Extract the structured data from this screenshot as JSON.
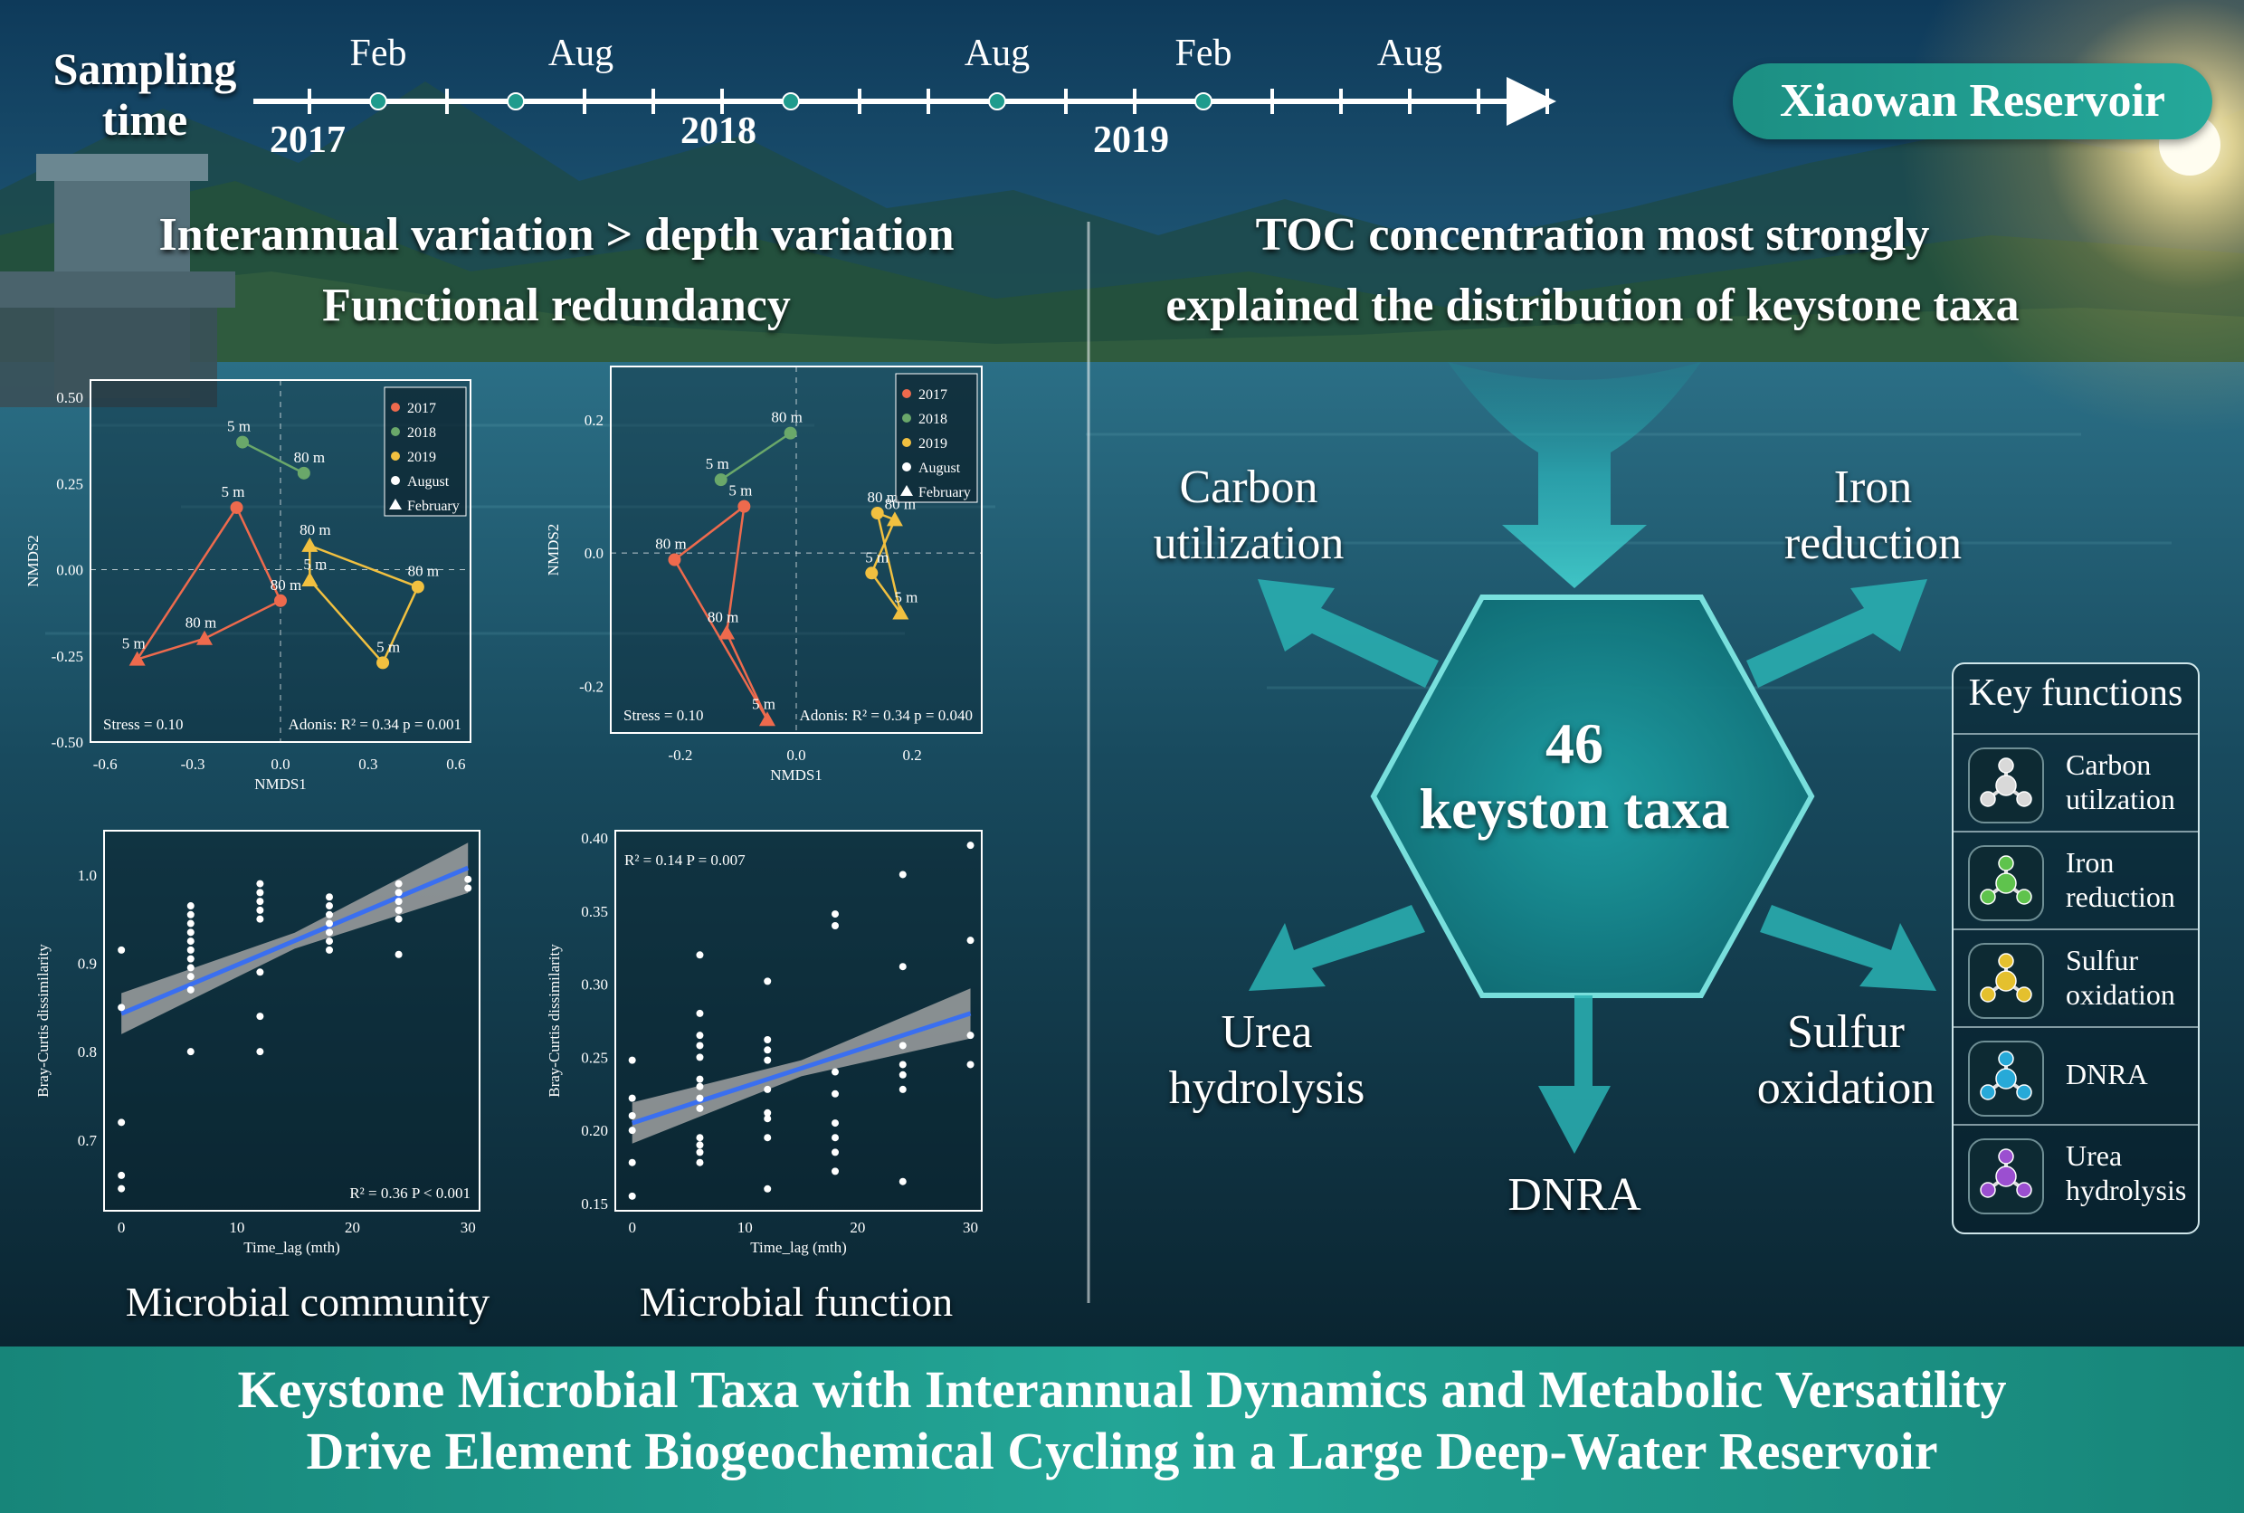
{
  "header": {
    "sampling_label_line1": "Sampling",
    "sampling_label_line2": "time",
    "months": [
      "Feb",
      "Aug",
      "Aug",
      "Feb",
      "Aug"
    ],
    "years": [
      "2017",
      "2018",
      "2019"
    ],
    "location": "Xiaowan Reservoir"
  },
  "left": {
    "heading1": "Interannual variation > depth variation",
    "heading2": "Functional redundancy",
    "caption_community": "Microbial community",
    "caption_function": "Microbial function"
  },
  "right": {
    "heading1": "TOC concentration most strongly",
    "heading2": "explained the distribution of keystone taxa",
    "count": "46",
    "count_label": "keyston taxa",
    "arrows": {
      "carbon": [
        "Carbon",
        "utilization"
      ],
      "iron": [
        "Iron",
        "reduction"
      ],
      "urea": [
        "Urea",
        "hydrolysis"
      ],
      "sulfur": [
        "Sulfur",
        "oxidation"
      ],
      "dnra": "DNRA"
    },
    "legend": {
      "title": "Key functions",
      "items": [
        {
          "line1": "Carbon",
          "line2": "utilzation",
          "color": "#d9d9d9"
        },
        {
          "line1": "Iron",
          "line2": "reduction",
          "color": "#5fc34d"
        },
        {
          "line1": "Sulfur",
          "line2": "oxidation",
          "color": "#e4c02e"
        },
        {
          "line1": "DNRA",
          "line2": "",
          "color": "#27a9d8"
        },
        {
          "line1": "Urea",
          "line2": "hydrolysis",
          "color": "#9b4fd0"
        }
      ]
    }
  },
  "colors": {
    "y2017": "#ee6a4d",
    "y2018": "#6aa86a",
    "y2019": "#f1c040",
    "teal": "#1f9b8d",
    "fit": "#3a6ff0"
  },
  "chart_data": [
    {
      "type": "scatter",
      "name": "NMDS community",
      "xlabel": "NMDS1",
      "ylabel": "NMDS2",
      "xlim": [
        -0.65,
        0.65
      ],
      "ylim": [
        -0.5,
        0.55
      ],
      "xticks": [
        "-0.6",
        "-0.3",
        "0.0",
        "0.3",
        "0.6"
      ],
      "yticks": [
        "-0.50",
        "-0.25",
        "0.00",
        "0.25",
        "0.50"
      ],
      "legend": [
        "2017",
        "2018",
        "2019",
        "August",
        "February"
      ],
      "stress": "Stress = 0.10",
      "adonis": "Adonis: R² = 0.34   p = 0.001",
      "points": [
        {
          "year": "2017",
          "season": "August",
          "depth": "5 m",
          "x": -0.15,
          "y": 0.18
        },
        {
          "year": "2017",
          "season": "August",
          "depth": "80 m",
          "x": 0.0,
          "y": -0.09
        },
        {
          "year": "2017",
          "season": "February",
          "depth": "80 m",
          "x": -0.26,
          "y": -0.2
        },
        {
          "year": "2017",
          "season": "February",
          "depth": "5 m",
          "x": -0.49,
          "y": -0.26
        },
        {
          "year": "2018",
          "season": "August",
          "depth": "5 m",
          "x": -0.13,
          "y": 0.37
        },
        {
          "year": "2018",
          "season": "August",
          "depth": "80 m",
          "x": 0.08,
          "y": 0.28
        },
        {
          "year": "2019",
          "season": "February",
          "depth": "80 m",
          "x": 0.1,
          "y": 0.07
        },
        {
          "year": "2019",
          "season": "August",
          "depth": "80 m",
          "x": 0.47,
          "y": -0.05
        },
        {
          "year": "2019",
          "season": "August",
          "depth": "5 m",
          "x": 0.35,
          "y": -0.27
        },
        {
          "year": "2019",
          "season": "February",
          "depth": "5 m",
          "x": 0.1,
          "y": -0.03
        }
      ]
    },
    {
      "type": "scatter",
      "name": "NMDS function",
      "xlabel": "NMDS1",
      "ylabel": "NMDS2",
      "xlim": [
        -0.32,
        0.32
      ],
      "ylim": [
        -0.27,
        0.28
      ],
      "xticks": [
        "-0.2",
        "0.0",
        "0.2"
      ],
      "yticks": [
        "-0.2",
        "0.0",
        "0.2"
      ],
      "legend": [
        "2017",
        "2018",
        "2019",
        "August",
        "February"
      ],
      "stress": "Stress = 0.10",
      "adonis": "Adonis: R² = 0.34   p = 0.040",
      "points": [
        {
          "year": "2017",
          "season": "August",
          "depth": "80 m",
          "x": -0.21,
          "y": -0.01
        },
        {
          "year": "2017",
          "season": "August",
          "depth": "5 m",
          "x": -0.09,
          "y": 0.07
        },
        {
          "year": "2017",
          "season": "February",
          "depth": "80 m",
          "x": -0.12,
          "y": -0.12
        },
        {
          "year": "2017",
          "season": "February",
          "depth": "5 m",
          "x": -0.05,
          "y": -0.25
        },
        {
          "year": "2018",
          "season": "August",
          "depth": "5 m",
          "x": -0.13,
          "y": 0.11
        },
        {
          "year": "2018",
          "season": "August",
          "depth": "80 m",
          "x": -0.01,
          "y": 0.18
        },
        {
          "year": "2019",
          "season": "August",
          "depth": "80 m",
          "x": 0.14,
          "y": 0.06
        },
        {
          "year": "2019",
          "season": "February",
          "depth": "80 m",
          "x": 0.17,
          "y": 0.05
        },
        {
          "year": "2019",
          "season": "August",
          "depth": "5 m",
          "x": 0.13,
          "y": -0.03
        },
        {
          "year": "2019",
          "season": "February",
          "depth": "5 m",
          "x": 0.18,
          "y": -0.09
        }
      ]
    },
    {
      "type": "scatter",
      "name": "Community distance decay",
      "xlabel": "Time_lag (mth)",
      "ylabel": "Bray-Curtis dissimilarity",
      "xlim": [
        -1.5,
        31
      ],
      "ylim": [
        0.62,
        1.05
      ],
      "xticks": [
        "0",
        "10",
        "20",
        "30"
      ],
      "yticks": [
        "0.7",
        "0.8",
        "0.9",
        "1.0"
      ],
      "stat": "R² = 0.36    P < 0.001",
      "fit": {
        "x0": 0,
        "y0": 0.843,
        "x1": 30,
        "y1": 1.008
      },
      "points": [
        [
          0,
          0.915
        ],
        [
          0,
          0.85
        ],
        [
          0,
          0.72
        ],
        [
          0,
          0.66
        ],
        [
          0,
          0.645
        ],
        [
          6,
          0.965
        ],
        [
          6,
          0.955
        ],
        [
          6,
          0.945
        ],
        [
          6,
          0.935
        ],
        [
          6,
          0.925
        ],
        [
          6,
          0.915
        ],
        [
          6,
          0.905
        ],
        [
          6,
          0.895
        ],
        [
          6,
          0.885
        ],
        [
          6,
          0.87
        ],
        [
          6,
          0.8
        ],
        [
          12,
          0.99
        ],
        [
          12,
          0.98
        ],
        [
          12,
          0.97
        ],
        [
          12,
          0.96
        ],
        [
          12,
          0.95
        ],
        [
          12,
          0.89
        ],
        [
          12,
          0.84
        ],
        [
          12,
          0.8
        ],
        [
          18,
          0.975
        ],
        [
          18,
          0.965
        ],
        [
          18,
          0.955
        ],
        [
          18,
          0.945
        ],
        [
          18,
          0.935
        ],
        [
          18,
          0.925
        ],
        [
          18,
          0.915
        ],
        [
          24,
          0.99
        ],
        [
          24,
          0.98
        ],
        [
          24,
          0.97
        ],
        [
          24,
          0.96
        ],
        [
          24,
          0.95
        ],
        [
          24,
          0.91
        ],
        [
          30,
          0.995
        ],
        [
          30,
          0.985
        ]
      ]
    },
    {
      "type": "scatter",
      "name": "Function distance decay",
      "xlabel": "Time_lag (mth)",
      "ylabel": "Bray-Curtis dissimilarity",
      "xlim": [
        -1.5,
        31
      ],
      "ylim": [
        0.145,
        0.405
      ],
      "xticks": [
        "0",
        "10",
        "20",
        "30"
      ],
      "yticks": [
        "0.15",
        "0.20",
        "0.25",
        "0.30",
        "0.35",
        "0.40"
      ],
      "stat": "R² = 0.14    P = 0.007",
      "fit": {
        "x0": 0,
        "y0": 0.205,
        "x1": 30,
        "y1": 0.28
      },
      "points": [
        [
          0,
          0.248
        ],
        [
          0,
          0.222
        ],
        [
          0,
          0.21
        ],
        [
          0,
          0.2
        ],
        [
          0,
          0.178
        ],
        [
          0,
          0.155
        ],
        [
          6,
          0.32
        ],
        [
          6,
          0.28
        ],
        [
          6,
          0.265
        ],
        [
          6,
          0.258
        ],
        [
          6,
          0.25
        ],
        [
          6,
          0.235
        ],
        [
          6,
          0.23
        ],
        [
          6,
          0.222
        ],
        [
          6,
          0.215
        ],
        [
          6,
          0.195
        ],
        [
          6,
          0.19
        ],
        [
          6,
          0.185
        ],
        [
          6,
          0.178
        ],
        [
          12,
          0.302
        ],
        [
          12,
          0.262
        ],
        [
          12,
          0.255
        ],
        [
          12,
          0.248
        ],
        [
          12,
          0.228
        ],
        [
          12,
          0.212
        ],
        [
          12,
          0.208
        ],
        [
          12,
          0.195
        ],
        [
          12,
          0.16
        ],
        [
          18,
          0.348
        ],
        [
          18,
          0.34
        ],
        [
          18,
          0.24
        ],
        [
          18,
          0.225
        ],
        [
          18,
          0.205
        ],
        [
          18,
          0.195
        ],
        [
          18,
          0.185
        ],
        [
          18,
          0.172
        ],
        [
          24,
          0.375
        ],
        [
          24,
          0.312
        ],
        [
          24,
          0.258
        ],
        [
          24,
          0.245
        ],
        [
          24,
          0.238
        ],
        [
          24,
          0.228
        ],
        [
          24,
          0.165
        ],
        [
          30,
          0.395
        ],
        [
          30,
          0.33
        ],
        [
          30,
          0.265
        ],
        [
          30,
          0.245
        ]
      ]
    }
  ],
  "footer": {
    "title_line1": "Keystone Microbial Taxa with Interannual Dynamics and Metabolic Versatility",
    "title_line2": "Drive Element Biogeochemical Cycling in a Large Deep-Water Reservoir"
  }
}
